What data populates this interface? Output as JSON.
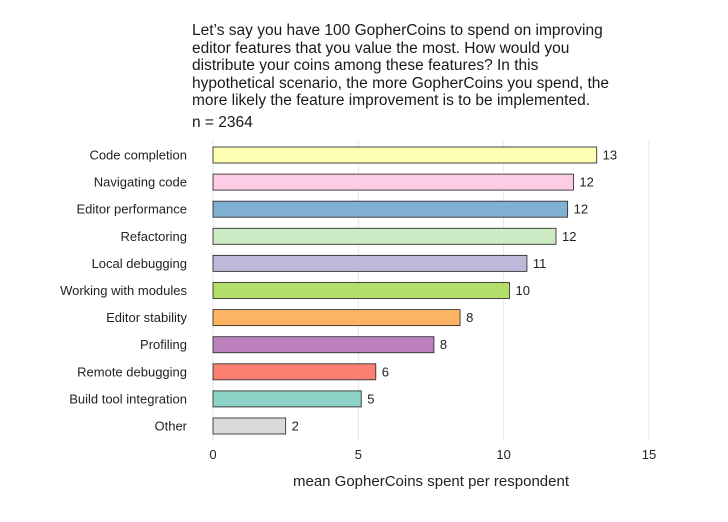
{
  "chart_data": {
    "type": "bar",
    "orientation": "horizontal",
    "title": "Let’s say you have 100 GopherCoins to spend on improving\neditor features that you value the most. How would you\ndistribute your coins among these features? In this\nhypothetical scenario, the more GopherCoins you spend, the\nmore likely the feature improvement is to be implemented.",
    "subtitle": "n = 2364",
    "xlabel": "mean GopherCoins spent per respondent",
    "ylabel": "",
    "xlim": [
      0,
      15
    ],
    "xticks": [
      0,
      5,
      10,
      15
    ],
    "grid": true,
    "categories": [
      "Code completion",
      "Navigating code",
      "Editor performance",
      "Refactoring",
      "Local debugging",
      "Working with modules",
      "Editor stability",
      "Profiling",
      "Remote debugging",
      "Build tool integration",
      "Other"
    ],
    "values": [
      13.2,
      12.4,
      12.2,
      11.8,
      10.8,
      10.2,
      8.5,
      7.6,
      5.6,
      5.1,
      2.5
    ],
    "labels": [
      "13",
      "12",
      "12",
      "12",
      "11",
      "10",
      "8",
      "8",
      "6",
      "5",
      "2"
    ],
    "colors": [
      "#ffffb3",
      "#fccde5",
      "#80b1d3",
      "#ccebc5",
      "#bebada",
      "#b3de69",
      "#fdb462",
      "#bc80bd",
      "#fb8072",
      "#8dd3c7",
      "#d9d9d9"
    ]
  }
}
